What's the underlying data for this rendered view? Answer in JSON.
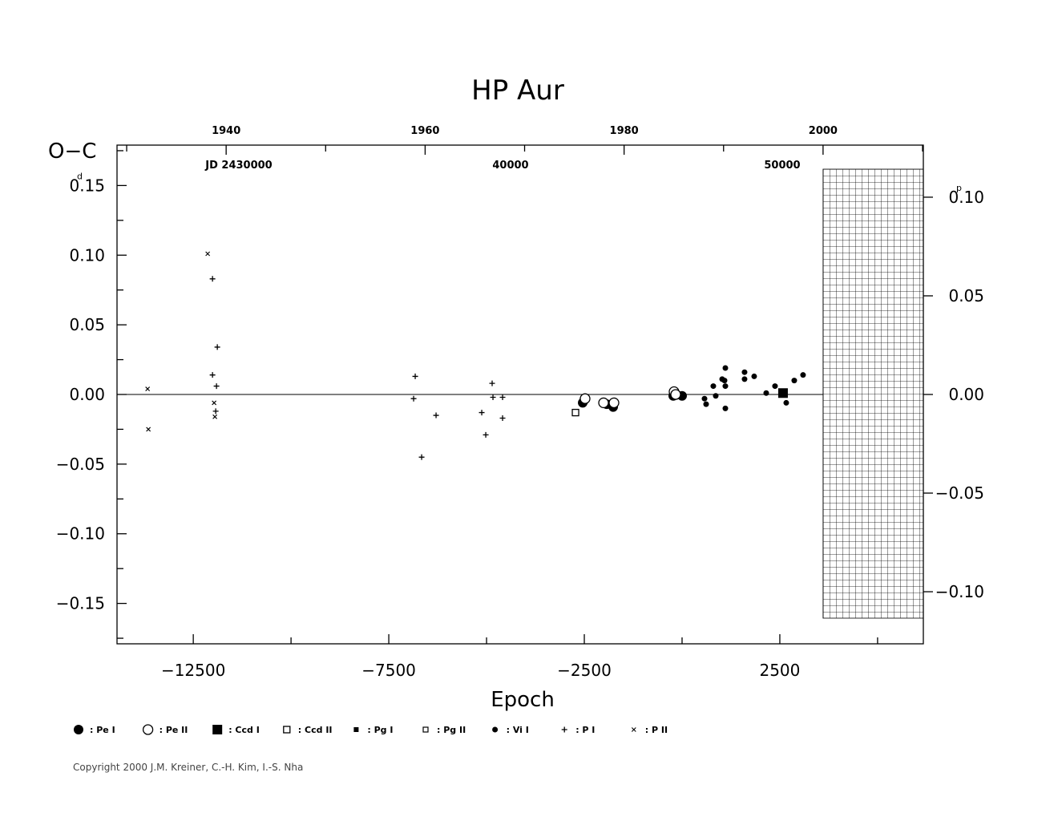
{
  "chart_data": {
    "type": "scatter",
    "title": "HP Aur",
    "y_label": "O−C",
    "y_unit": "d",
    "y2_unit": "p",
    "x_label": "Epoch",
    "copyright": "Copyright 2000 J.M. Kreiner, C.-H. Kim, I.-S. Nha",
    "xlim": [
      -14450,
      6170
    ],
    "xticks": [
      {
        "value": -12500,
        "label": "−12500"
      },
      {
        "value": -7500,
        "label": "−7500"
      },
      {
        "value": -2500,
        "label": "−2500"
      },
      2500
    ],
    "xminorticks": [
      -10000,
      -5000,
      0,
      5000
    ],
    "ylim": [
      -0.179,
      0.179
    ],
    "yticks": [
      {
        "value": -0.15,
        "label": "−0.15"
      },
      {
        "value": -0.1,
        "label": "−0.10"
      },
      {
        "value": -0.05,
        "label": "−0.05"
      },
      {
        "value": 0,
        "label": "0.00"
      },
      0.05,
      {
        "value": 0.1,
        "label": "0.10"
      },
      0.15
    ],
    "yminorticks": [
      -0.175,
      -0.125,
      -0.075,
      -0.025,
      0.025,
      0.075,
      0.125,
      0.175
    ],
    "y2lim": [
      -0.1264,
      0.1264
    ],
    "y2ticks": [
      {
        "value": -0.1,
        "label": "−0.10"
      },
      {
        "value": -0.05,
        "label": "−0.05"
      },
      {
        "value": 0,
        "label": "0.00"
      },
      0.05,
      {
        "value": 0.1,
        "label": "0.10"
      }
    ],
    "top_xlim": [
      1929.03,
      2010.08
    ],
    "top_xticks": [
      1940,
      1960,
      1980,
      2000
    ],
    "top_xminorticks": [
      1930,
      1950,
      1970,
      1990,
      2010
    ],
    "jd_lim": [
      2425516,
      2455192
    ],
    "jd_ticks": [
      {
        "value": 2430000,
        "label": "JD 2430000"
      },
      {
        "value": 2440000,
        "label": "40000"
      },
      {
        "value": 2450000,
        "label": "50000"
      }
    ],
    "series": [
      {
        "name": ": Pe I",
        "marker": "big-dot",
        "x": [
          -2541,
          -2500,
          -1926,
          -1762,
          -225,
          0
        ],
        "values": [
          -0.006,
          -0.004,
          -0.007,
          -0.009,
          -0.001,
          -0.001
        ]
      },
      {
        "name": ": Pe II",
        "marker": "big-ring",
        "x": [
          -2480,
          -2008,
          -1742,
          -205,
          -164
        ],
        "values": [
          -0.003,
          -0.006,
          -0.006,
          0.002,
          0
        ]
      },
      {
        "name": ": Ccd I",
        "marker": "big-square",
        "x": [
          2582
        ],
        "values": [
          0.001
        ]
      },
      {
        "name": ": Ccd II",
        "marker": "open-square",
        "x": [
          -2725
        ],
        "values": [
          -0.013
        ]
      },
      {
        "name": ": Pg I",
        "marker": "small-square",
        "x": [],
        "values": []
      },
      {
        "name": ": Pg II",
        "marker": "small-open-square",
        "x": [],
        "values": []
      },
      {
        "name": ": Vi I",
        "marker": "small-dot",
        "x": [
          574,
          615,
          799,
          861,
          1025,
          1086,
          1107,
          1107,
          1107,
          1598,
          1598,
          1844,
          2152,
          2377,
          2664,
          2869,
          3094
        ],
        "values": [
          -0.003,
          -0.007,
          0.006,
          -0.001,
          0.011,
          0.01,
          0.019,
          0.006,
          -0.01,
          0.016,
          0.011,
          0.013,
          0.001,
          0.006,
          -0.006,
          0.01,
          0.014
        ]
      },
      {
        "name": ": P I",
        "marker": "plus",
        "x": [
          -12008,
          -11885,
          -12008,
          -11906,
          -11926,
          -6824,
          -6865,
          -6660,
          -6291,
          -5123,
          -5020,
          -4857,
          -4836,
          -4590,
          -4590
        ],
        "values": [
          0.083,
          0.034,
          0.014,
          0.006,
          -0.012,
          0.013,
          -0.003,
          -0.045,
          -0.015,
          -0.013,
          -0.029,
          0.008,
          -0.002,
          -0.002,
          -0.017
        ]
      },
      {
        "name": ": P II",
        "marker": "cross",
        "x": [
          -13668,
          -13648,
          -12131,
          -11967,
          -11947
        ],
        "values": [
          0.004,
          -0.025,
          0.101,
          -0.006,
          -0.016
        ]
      }
    ]
  }
}
